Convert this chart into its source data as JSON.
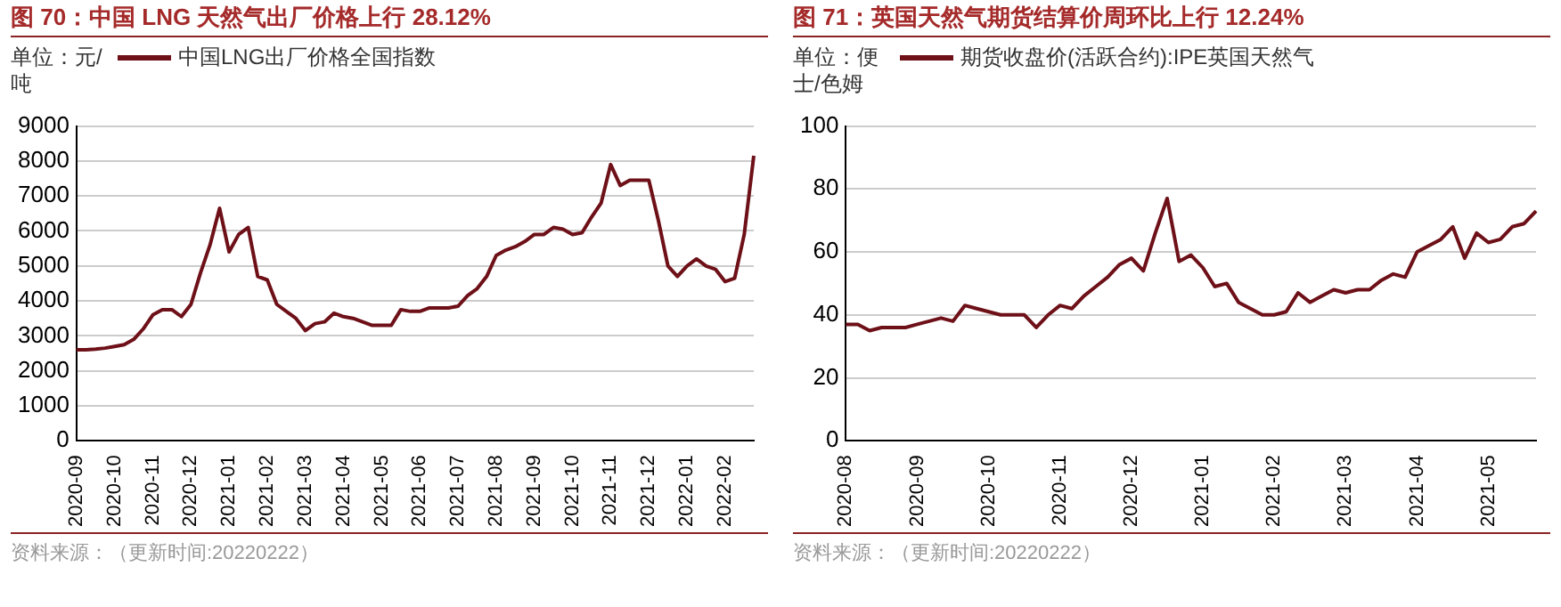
{
  "chart_data": [
    {
      "type": "line",
      "title": "图 70：中国 LNG 天然气出厂价格上行 28.12%",
      "ylabel": "单位：元/吨",
      "categories": [
        "2020-09",
        null,
        null,
        null,
        "2020-10",
        null,
        null,
        null,
        "2020-11",
        null,
        null,
        null,
        "2020-12",
        null,
        null,
        null,
        "2021-01",
        null,
        null,
        null,
        "2021-02",
        null,
        null,
        null,
        "2021-03",
        null,
        null,
        null,
        "2021-04",
        null,
        null,
        null,
        "2021-05",
        null,
        null,
        null,
        "2021-06",
        null,
        null,
        null,
        "2021-07",
        null,
        null,
        null,
        "2021-08",
        null,
        null,
        null,
        "2021-09",
        null,
        null,
        null,
        "2021-10",
        null,
        null,
        null,
        "2021-11",
        null,
        null,
        null,
        "2021-12",
        null,
        null,
        null,
        "2022-01",
        null,
        null,
        null,
        "2022-02",
        null,
        null,
        null
      ],
      "series": [
        {
          "name": "中国LNG出厂价格全国指数",
          "color": "#6e1018",
          "values": [
            2600,
            2600,
            2620,
            2650,
            2700,
            2750,
            2900,
            3200,
            3600,
            3750,
            3750,
            3550,
            3900,
            4800,
            5600,
            6650,
            5400,
            5900,
            6100,
            4700,
            4600,
            3900,
            3700,
            3500,
            3150,
            3350,
            3400,
            3650,
            3550,
            3500,
            3400,
            3300,
            3300,
            3300,
            3750,
            3700,
            3700,
            3800,
            3800,
            3800,
            3850,
            4150,
            4350,
            4700,
            5300,
            5450,
            5550,
            5700,
            5900,
            5900,
            6100,
            6050,
            5900,
            5950,
            6400,
            6800,
            7900,
            7300,
            7450,
            7450,
            7450,
            6300,
            5000,
            4700,
            5000,
            5200,
            5000,
            4900,
            4550,
            4650,
            5900,
            8150
          ]
        }
      ],
      "ylim": [
        0,
        9000
      ],
      "yticks": [
        0,
        1000,
        2000,
        3000,
        4000,
        5000,
        6000,
        7000,
        8000,
        9000
      ],
      "grid": "y",
      "legend": "top",
      "annotations": [
        "资料来源：（更新时间:20220222）"
      ]
    },
    {
      "type": "line",
      "title": "图 71：英国天然气期货结算价周环比上行 12.24%",
      "ylabel": "单位：便士/色姆",
      "categories": [
        "2020-08",
        null,
        null,
        null,
        null,
        null,
        "2020-09",
        null,
        null,
        null,
        null,
        null,
        "2020-10",
        null,
        null,
        null,
        null,
        null,
        "2020-11",
        null,
        null,
        null,
        null,
        null,
        "2020-12",
        null,
        null,
        null,
        null,
        null,
        "2021-01",
        null,
        null,
        null,
        null,
        null,
        "2021-02",
        null,
        null,
        null,
        null,
        null,
        "2021-03",
        null,
        null,
        null,
        null,
        null,
        "2021-04",
        null,
        null,
        null,
        null,
        null,
        "2021-05",
        null,
        null,
        null,
        null
      ],
      "series": [
        {
          "name": "期货收盘价(活跃合约):IPE英国天然气",
          "color": "#6e1018",
          "values": [
            37,
            37,
            35,
            36,
            36,
            36,
            37,
            38,
            39,
            38,
            43,
            42,
            41,
            40,
            40,
            40,
            36,
            40,
            43,
            42,
            46,
            49,
            52,
            56,
            58,
            54,
            66,
            77,
            57,
            59,
            55,
            49,
            50,
            44,
            42,
            40,
            40,
            41,
            47,
            44,
            46,
            48,
            47,
            48,
            48,
            51,
            53,
            52,
            60,
            62,
            64,
            68,
            58,
            66,
            63,
            64,
            68,
            69,
            73
          ]
        }
      ],
      "ylim": [
        0,
        100
      ],
      "yticks": [
        0,
        20,
        40,
        60,
        80,
        100
      ],
      "grid": "y",
      "legend": "top",
      "annotations": [
        "资料来源：（更新时间:20220222）"
      ]
    }
  ]
}
